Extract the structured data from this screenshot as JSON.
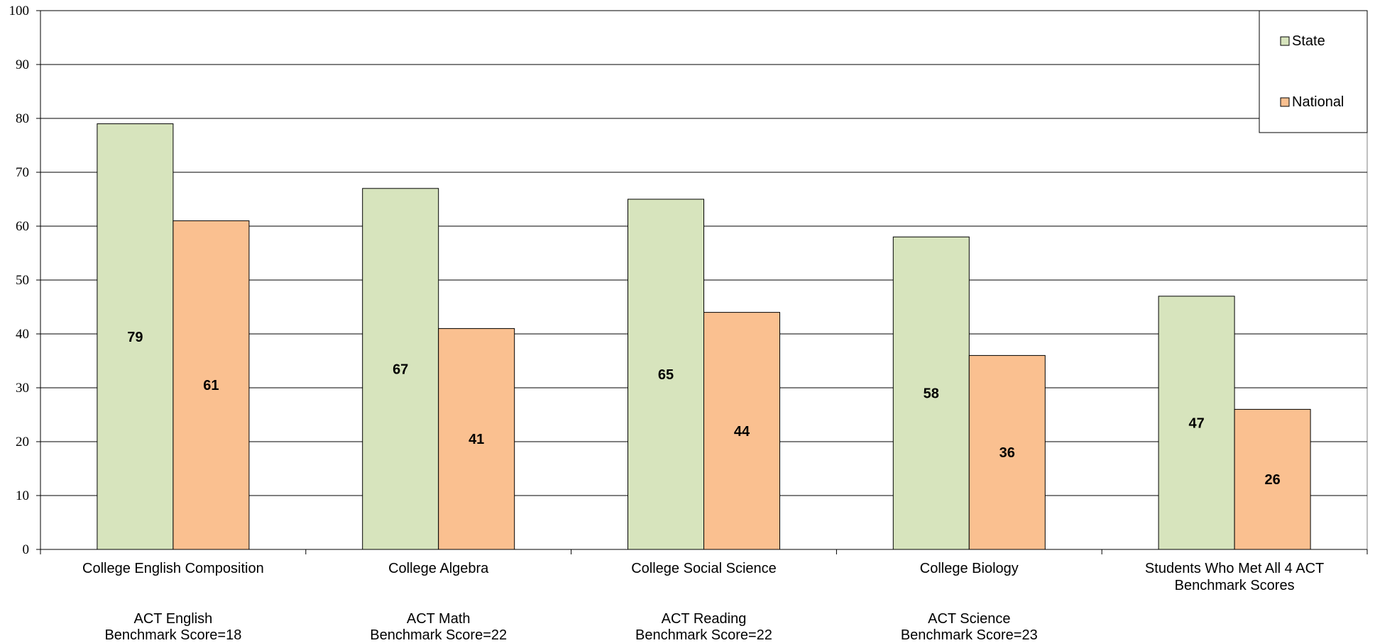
{
  "chart_data": {
    "type": "bar",
    "title": "",
    "xlabel": "",
    "ylabel": "",
    "ylim": [
      0,
      100
    ],
    "yticks": [
      0,
      10,
      20,
      30,
      40,
      50,
      60,
      70,
      80,
      90,
      100
    ],
    "grid": true,
    "legend_position": "top-right",
    "categories": [
      {
        "label": [
          "College English Composition"
        ],
        "sub": [
          "ACT English",
          "Benchmark Score=18"
        ]
      },
      {
        "label": [
          "College Algebra"
        ],
        "sub": [
          "ACT Math",
          "Benchmark Score=22"
        ]
      },
      {
        "label": [
          "College Social Science"
        ],
        "sub": [
          "ACT Reading",
          "Benchmark Score=22"
        ]
      },
      {
        "label": [
          "College Biology"
        ],
        "sub": [
          "ACT Science",
          "Benchmark Score=23"
        ]
      },
      {
        "label": [
          "Students Who Met All 4 ACT",
          "Benchmark Scores"
        ],
        "sub": []
      }
    ],
    "series": [
      {
        "name": "State",
        "color": "#d7e4bd",
        "values": [
          79,
          67,
          65,
          58,
          47
        ]
      },
      {
        "name": "National",
        "color": "#fac090",
        "values": [
          61,
          41,
          44,
          36,
          26
        ]
      }
    ]
  }
}
